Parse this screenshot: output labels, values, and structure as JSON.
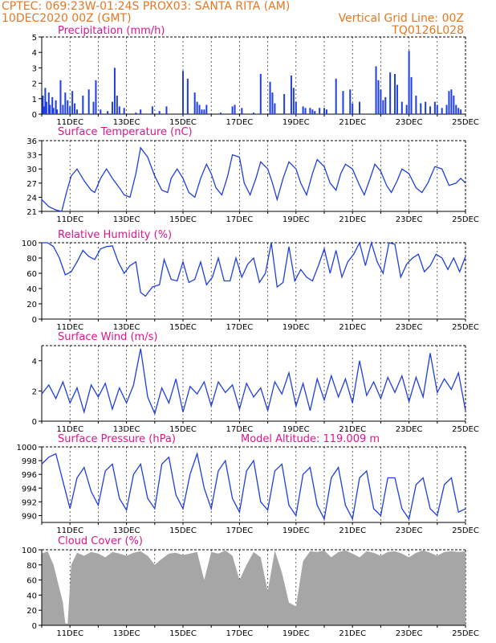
{
  "header": {
    "line1_left": "CPTEC:   069:23W-01:24S   PROX03: SANTA RITA (AM)",
    "line2_left": "10DEC2020 00Z (GMT)",
    "line2_right": "Vertical Grid Line: 00Z",
    "line3_right": "TQ0126L028"
  },
  "colors": {
    "header": "#e87722",
    "title": "#e0148c",
    "line": "#1f3fe0",
    "cloud": "#a6a6a6"
  },
  "chart_data": [
    {
      "type": "bar",
      "title": "Precipitation (mm/h)",
      "ylim": [
        0,
        5
      ],
      "yticks": [
        0,
        1,
        2,
        3,
        4,
        5
      ],
      "xlim": [
        0,
        360
      ],
      "xticks": [
        "11DEC",
        "13DEC",
        "15DEC",
        "17DEC",
        "19DEC",
        "21DEC",
        "23DEC",
        "25DEC"
      ],
      "color": "#1f3fe0",
      "x": [
        1,
        2,
        3,
        4,
        6,
        7,
        9,
        10,
        12,
        13,
        16,
        18,
        20,
        22,
        24,
        26,
        28,
        30,
        35,
        40,
        44,
        46,
        50,
        56,
        60,
        62,
        64,
        66,
        70,
        80,
        84,
        94,
        100,
        106,
        120,
        124,
        130,
        132,
        134,
        136,
        138,
        140,
        152,
        162,
        164,
        170,
        180,
        186,
        194,
        196,
        198,
        206,
        212,
        214,
        216,
        222,
        224,
        228,
        230,
        232,
        236,
        240,
        242,
        250,
        256,
        262,
        264,
        270,
        284,
        286,
        288,
        290,
        292,
        296,
        300,
        302,
        306,
        310,
        312,
        314,
        318,
        322,
        326,
        330,
        334,
        336,
        340,
        344,
        346,
        348,
        350,
        352,
        354,
        356
      ],
      "values": [
        1.2,
        0.5,
        1.7,
        0.8,
        1.4,
        0.6,
        1.1,
        0.4,
        0.9,
        0.3,
        2.2,
        0.6,
        1.4,
        0.9,
        0.5,
        1.5,
        0.7,
        0.3,
        1.2,
        1.6,
        0.8,
        2.2,
        0.3,
        0.2,
        0.8,
        3.0,
        1.2,
        0.5,
        0.4,
        0.1,
        0.3,
        0.5,
        0.2,
        0.5,
        2.8,
        2.3,
        1.4,
        0.8,
        0.6,
        0.3,
        0.3,
        0.6,
        0.1,
        0.5,
        0.6,
        0.4,
        0.1,
        2.6,
        2.1,
        1.4,
        0.7,
        1.3,
        2.5,
        1.7,
        0.8,
        0.5,
        0.4,
        0.4,
        0.3,
        0.2,
        0.4,
        0.4,
        0.3,
        2.3,
        1.5,
        1.6,
        0.7,
        0.8,
        3.1,
        2.2,
        1.6,
        0.9,
        1.1,
        2.7,
        2.6,
        1.9,
        0.8,
        0.6,
        4.1,
        2.4,
        1.2,
        0.7,
        0.8,
        0.5,
        0.8,
        0.6,
        0.4,
        0.6,
        1.5,
        1.6,
        1.2,
        0.6,
        0.4,
        0.3
      ]
    },
    {
      "type": "line",
      "title": "Surface Temperature (nC)",
      "ylim": [
        21,
        36
      ],
      "yticks": [
        21,
        24,
        27,
        30,
        33,
        36
      ],
      "xlim": [
        0,
        360
      ],
      "xticks": [
        "11DEC",
        "13DEC",
        "15DEC",
        "17DEC",
        "19DEC",
        "21DEC",
        "23DEC",
        "25DEC"
      ],
      "color": "#1f3fe0",
      "x": [
        0,
        6,
        12,
        17,
        21,
        25,
        30,
        36,
        42,
        45,
        50,
        55,
        60,
        66,
        70,
        75,
        80,
        84,
        90,
        96,
        102,
        107,
        110,
        115,
        120,
        125,
        130,
        135,
        140,
        144,
        148,
        153,
        158,
        162,
        168,
        172,
        177,
        182,
        186,
        192,
        196,
        200,
        205,
        210,
        216,
        220,
        225,
        230,
        234,
        240,
        245,
        250,
        254,
        258,
        264,
        270,
        274,
        279,
        283,
        288,
        293,
        297,
        302,
        306,
        312,
        318,
        323,
        328,
        334,
        340,
        346,
        352,
        356,
        360
      ],
      "values": [
        23.5,
        22,
        21.3,
        21,
        25,
        28.5,
        30,
        27.5,
        25.5,
        25,
        28,
        30,
        28,
        26,
        24.5,
        24,
        29,
        34.5,
        32.5,
        28.5,
        25.5,
        25,
        28,
        30,
        28,
        25,
        24,
        28,
        31,
        29,
        26,
        24.5,
        28.5,
        33,
        32.5,
        27,
        24.5,
        28,
        31.5,
        30,
        27,
        23.5,
        28,
        31.5,
        30,
        27,
        24.5,
        29,
        32,
        30.5,
        27,
        25.5,
        29,
        31,
        30,
        26.5,
        24.5,
        28,
        31,
        29.5,
        26.5,
        25,
        27.5,
        30,
        29,
        26,
        25,
        27,
        30.5,
        30,
        26.5,
        27,
        28,
        27
      ]
    },
    {
      "type": "line",
      "title": "Relative Humidity (%)",
      "ylim": [
        0,
        100
      ],
      "yticks": [
        0,
        20,
        40,
        60,
        80,
        100
      ],
      "xlim": [
        0,
        360
      ],
      "xticks": [
        "11DEC",
        "13DEC",
        "15DEC",
        "17DEC",
        "19DEC",
        "21DEC",
        "23DEC",
        "25DEC"
      ],
      "color": "#1f3fe0",
      "x": [
        0,
        5,
        10,
        15,
        20,
        25,
        30,
        35,
        40,
        45,
        50,
        55,
        60,
        65,
        70,
        75,
        80,
        84,
        88,
        94,
        100,
        104,
        110,
        115,
        120,
        125,
        130,
        135,
        140,
        145,
        150,
        155,
        160,
        165,
        170,
        175,
        180,
        185,
        190,
        195,
        200,
        205,
        210,
        215,
        220,
        225,
        230,
        235,
        240,
        245,
        250,
        255,
        260,
        265,
        270,
        275,
        280,
        285,
        290,
        295,
        300,
        305,
        310,
        315,
        320,
        325,
        330,
        335,
        340,
        345,
        350,
        355,
        360
      ],
      "values": [
        100,
        100,
        95,
        80,
        58,
        62,
        75,
        90,
        82,
        78,
        92,
        95,
        96,
        75,
        60,
        70,
        75,
        35,
        30,
        42,
        45,
        78,
        52,
        50,
        75,
        48,
        52,
        75,
        45,
        55,
        80,
        50,
        50,
        80,
        55,
        72,
        80,
        48,
        60,
        100,
        42,
        48,
        95,
        50,
        65,
        55,
        50,
        70,
        92,
        60,
        90,
        55,
        75,
        85,
        100,
        70,
        100,
        75,
        60,
        100,
        98,
        55,
        72,
        80,
        85,
        62,
        70,
        85,
        80,
        65,
        80,
        62,
        82
      ]
    },
    {
      "type": "line",
      "title": "Surface Wind (m/s)",
      "ylim": [
        0,
        5
      ],
      "yticks": [
        0,
        2,
        4
      ],
      "xlim": [
        0,
        360
      ],
      "xticks": [
        "11DEC",
        "13DEC",
        "15DEC",
        "17DEC",
        "19DEC",
        "21DEC",
        "23DEC",
        "25DEC"
      ],
      "color": "#1f3fe0",
      "x": [
        0,
        6,
        12,
        18,
        24,
        30,
        36,
        42,
        48,
        54,
        60,
        66,
        72,
        78,
        84,
        90,
        96,
        102,
        108,
        114,
        120,
        126,
        132,
        138,
        144,
        150,
        156,
        162,
        168,
        174,
        180,
        186,
        192,
        198,
        204,
        210,
        216,
        222,
        228,
        234,
        240,
        246,
        252,
        258,
        264,
        270,
        276,
        282,
        288,
        294,
        300,
        306,
        312,
        318,
        324,
        330,
        336,
        342,
        348,
        354,
        360
      ],
      "values": [
        1.8,
        2.4,
        1.5,
        2.6,
        1.2,
        2.2,
        0.6,
        2.4,
        1.6,
        2.5,
        0.8,
        2.2,
        1.2,
        2.4,
        4.8,
        1.6,
        0.5,
        2.2,
        1.2,
        2.8,
        0.6,
        2.3,
        1.8,
        2.6,
        1.0,
        2.6,
        1.9,
        2.4,
        0.8,
        2.5,
        1.6,
        2.2,
        0.7,
        2.6,
        1.8,
        3.2,
        1.0,
        2.5,
        0.7,
        2.8,
        1.4,
        3.0,
        1.6,
        2.8,
        1.2,
        4.0,
        1.7,
        2.6,
        1.5,
        2.9,
        1.9,
        3.0,
        1.3,
        2.9,
        1.6,
        4.5,
        1.9,
        2.8,
        2.1,
        3.2,
        0.7
      ]
    },
    {
      "type": "line",
      "title": "Surface Pressure (hPa)",
      "annotation": "Model Altitude: 119.009  m",
      "ylim": [
        989,
        1000
      ],
      "yticks": [
        990,
        992,
        994,
        996,
        998,
        1000
      ],
      "xlim": [
        0,
        360
      ],
      "xticks": [
        "11DEC",
        "13DEC",
        "15DEC",
        "17DEC",
        "19DEC",
        "21DEC",
        "23DEC",
        "25DEC"
      ],
      "color": "#1f3fe0",
      "x": [
        0,
        6,
        12,
        18,
        24,
        30,
        36,
        42,
        48,
        54,
        60,
        66,
        72,
        78,
        84,
        90,
        96,
        102,
        108,
        114,
        120,
        126,
        132,
        138,
        144,
        150,
        156,
        162,
        168,
        174,
        180,
        186,
        192,
        198,
        204,
        210,
        216,
        222,
        228,
        234,
        240,
        246,
        252,
        258,
        264,
        270,
        276,
        282,
        288,
        294,
        300,
        306,
        312,
        318,
        324,
        330,
        336,
        342,
        348,
        354,
        360
      ],
      "values": [
        997.5,
        998.5,
        999,
        995,
        991,
        995.5,
        997,
        993.5,
        991.5,
        996.5,
        997.5,
        992.5,
        990.8,
        996,
        997.5,
        992.5,
        991,
        997.5,
        998.5,
        993,
        991,
        996,
        999,
        994,
        991,
        996.5,
        998,
        992.5,
        990.5,
        996.5,
        998,
        992,
        990.8,
        996.5,
        997.5,
        991.5,
        990,
        996,
        997,
        991.5,
        989.5,
        995.5,
        997,
        991.5,
        989.5,
        995.5,
        996.5,
        991,
        990,
        995.5,
        995.5,
        991,
        989.5,
        994.5,
        995.5,
        991,
        990,
        994.5,
        995.5,
        990.5,
        991
      ]
    },
    {
      "type": "area",
      "title": "Cloud Cover (%)",
      "ylim": [
        0,
        100
      ],
      "yticks": [
        0,
        20,
        40,
        60,
        80,
        100
      ],
      "xlim": [
        0,
        360
      ],
      "xticks": [
        "11DEC",
        "13DEC",
        "15DEC",
        "17DEC",
        "19DEC",
        "21DEC",
        "23DEC",
        "25DEC"
      ],
      "color": "#a6a6a6",
      "x": [
        0,
        5,
        10,
        14,
        18,
        20,
        22,
        25,
        30,
        36,
        42,
        48,
        54,
        60,
        66,
        72,
        78,
        84,
        90,
        96,
        102,
        108,
        114,
        120,
        126,
        132,
        138,
        144,
        150,
        156,
        162,
        168,
        174,
        180,
        186,
        192,
        198,
        204,
        210,
        216,
        222,
        228,
        234,
        240,
        246,
        252,
        258,
        264,
        270,
        276,
        282,
        288,
        294,
        300,
        306,
        312,
        318,
        324,
        330,
        336,
        342,
        348,
        354,
        360
      ],
      "values": [
        95,
        98,
        80,
        55,
        30,
        3,
        2,
        80,
        96,
        92,
        97,
        95,
        90,
        97,
        95,
        92,
        96,
        98,
        92,
        80,
        88,
        95,
        96,
        93,
        95,
        97,
        60,
        97,
        95,
        99,
        92,
        60,
        80,
        97,
        90,
        45,
        99,
        70,
        30,
        25,
        85,
        98,
        97,
        99,
        90,
        97,
        99,
        95,
        90,
        98,
        96,
        92,
        97,
        98,
        95,
        90,
        96,
        99,
        96,
        92,
        97,
        98,
        97,
        98
      ]
    }
  ]
}
